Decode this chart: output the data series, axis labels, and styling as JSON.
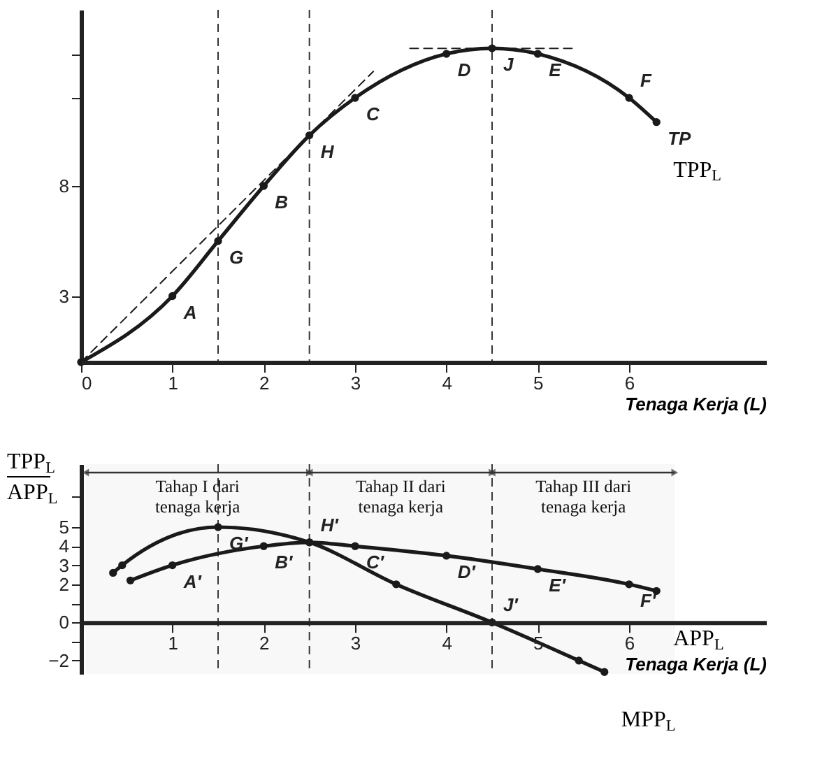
{
  "chart_data": [
    {
      "type": "line",
      "xlabel": "Tenaga Kerja (L)",
      "xlim": [
        0,
        7.5
      ],
      "xticks": [
        0,
        1,
        2,
        3,
        4,
        5,
        6
      ],
      "ylim": [
        0,
        16
      ],
      "yticks": [
        3,
        8,
        {
          "value": 12,
          "label": null
        },
        {
          "value": 14,
          "label": null
        }
      ],
      "grid": false,
      "series": [
        {
          "name": "TPP$_{L}$",
          "color": "#1a1a1a",
          "marker": "circle",
          "x": [
            0,
            1,
            1.5,
            2,
            2.5,
            3,
            4,
            4.5,
            5,
            6,
            6.3
          ],
          "values": [
            0,
            3,
            5.5,
            8,
            10.3,
            12,
            14,
            14.25,
            14,
            12,
            10.9
          ]
        },
        {
          "color": "#1a1a1a",
          "line_style": "dashed",
          "x": [
            0,
            3.2
          ],
          "values": [
            0,
            13.2
          ]
        },
        {
          "color": "#1a1a1a",
          "line_style": "dashed",
          "x": [
            3.6,
            5.4
          ],
          "values": [
            14.25,
            14.25
          ]
        }
      ],
      "ref_lines": [
        {
          "axis": "x",
          "value": 1.5,
          "line_style": "dashed"
        },
        {
          "axis": "x",
          "value": 2.5,
          "line_style": "dashed"
        },
        {
          "axis": "x",
          "value": 4.5,
          "line_style": "dashed"
        }
      ],
      "annotations": [
        {
          "text": "A",
          "x": 1,
          "y": 3
        },
        {
          "text": "G",
          "x": 1.5,
          "y": 5.5
        },
        {
          "text": "B",
          "x": 2,
          "y": 8
        },
        {
          "text": "H",
          "x": 2.5,
          "y": 10.3
        },
        {
          "text": "C",
          "x": 3,
          "y": 12
        },
        {
          "text": "D",
          "x": 4,
          "y": 14
        },
        {
          "text": "J",
          "x": 4.5,
          "y": 14.25
        },
        {
          "text": "E",
          "x": 5,
          "y": 14
        },
        {
          "text": "F",
          "x": 6,
          "y": 12
        },
        {
          "text": "TP",
          "x": 6.3,
          "y": 10.9
        }
      ]
    },
    {
      "type": "line",
      "xlabel": "Tenaga Kerja (L)",
      "ylabel": "TPP$_{L}$\nAPP$_{L}$",
      "xlim": [
        0,
        7.5
      ],
      "xticks": [
        1,
        2,
        3,
        4,
        5,
        6
      ],
      "ylim": [
        -2.7,
        8.3
      ],
      "yticks": [
        -2,
        {
          "value": -1,
          "label": null
        },
        0,
        {
          "value": 1,
          "label": null
        },
        2,
        3,
        4,
        5,
        {
          "value": 6.6,
          "label": null
        }
      ],
      "grid": false,
      "series": [
        {
          "name": "APP$_{L}$",
          "color": "#1a1a1a",
          "marker": "circle",
          "x": [
            0.54,
            1,
            2,
            2.5,
            3,
            4,
            5,
            6,
            6.3
          ],
          "values": [
            2.2,
            3,
            4,
            4.2,
            4,
            3.5,
            2.8,
            2,
            1.65
          ]
        },
        {
          "name": "MPP$_{L}$",
          "color": "#1a1a1a",
          "marker": "circle",
          "x": [
            0.35,
            0.45,
            1.5,
            2.5,
            3.45,
            4.5,
            5.45,
            5.73
          ],
          "values": [
            2.6,
            3,
            5,
            4.2,
            2,
            0,
            -2,
            -2.6
          ]
        }
      ],
      "ref_lines": [
        {
          "axis": "x",
          "value": 1.5,
          "line_style": "dashed"
        },
        {
          "axis": "x",
          "value": 2.5,
          "line_style": "dashed"
        },
        {
          "axis": "x",
          "value": 4.5,
          "line_style": "dashed"
        }
      ],
      "bands": [
        {
          "axis": "x",
          "from": 0.05,
          "to": 2.5,
          "label": "Tahap I dari\ntenaga kerja"
        },
        {
          "axis": "x",
          "from": 2.5,
          "to": 4.5,
          "label": "Tahap II dari\ntenaga kerja"
        },
        {
          "axis": "x",
          "from": 4.5,
          "to": 6.5,
          "label": "Tahap III dari\ntenaga kerja"
        }
      ],
      "annotations": [
        {
          "text": "A′",
          "x": 1,
          "y": 3
        },
        {
          "text": "G′",
          "x": 1.5,
          "y": 5
        },
        {
          "text": "B′",
          "x": 2,
          "y": 4
        },
        {
          "text": "H′",
          "x": 2.5,
          "y": 4.2
        },
        {
          "text": "C′",
          "x": 3,
          "y": 4
        },
        {
          "text": "D′",
          "x": 4,
          "y": 3.5
        },
        {
          "text": "E′",
          "x": 5,
          "y": 2.8
        },
        {
          "text": "F′",
          "x": 6,
          "y": 2
        },
        {
          "text": "J′",
          "x": 4.5,
          "y": 0
        }
      ]
    }
  ]
}
